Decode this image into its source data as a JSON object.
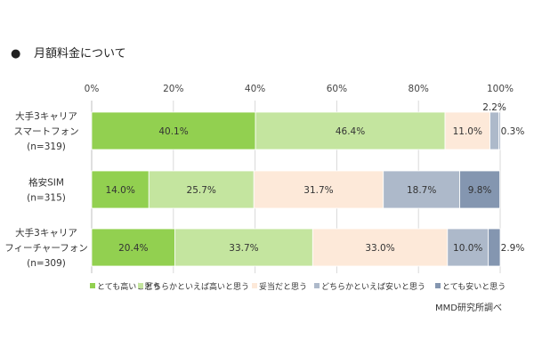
{
  "title": "月額料金について",
  "title_bullet": "●",
  "source": "MMD研究所調べ",
  "chart_data": {
    "type": "bar",
    "orientation": "horizontal",
    "stacked": true,
    "xlim": [
      0,
      100
    ],
    "x_ticks": [
      "0%",
      "20%",
      "40%",
      "60%",
      "80%",
      "100%"
    ],
    "grid": true,
    "legend_position": "bottom",
    "categories": [
      [
        "大手3キャリア",
        "スマートフォン",
        "(n=319)"
      ],
      [
        "格安SIM",
        "(n=315)"
      ],
      [
        "大手3キャリア",
        "フィーチャーフォン",
        "(n=309)"
      ]
    ],
    "series": [
      {
        "name": "とても高いと思う",
        "color": "#92d050",
        "values": [
          40.1,
          14.0,
          20.4
        ],
        "labels": [
          "40.1%",
          "14.0%",
          "20.4%"
        ]
      },
      {
        "name": "どちらかといえば高いと思う",
        "color": "#c4e59f",
        "values": [
          46.4,
          25.7,
          33.7
        ],
        "labels": [
          "46.4%",
          "25.7%",
          "33.7%"
        ]
      },
      {
        "name": "妥当だと思う",
        "color": "#fde9d9",
        "values": [
          11.0,
          31.7,
          33.0
        ],
        "labels": [
          "11.0%",
          "31.7%",
          "33.0%"
        ]
      },
      {
        "name": "どちらかといえば安いと思う",
        "color": "#adb9ca",
        "values": [
          2.2,
          18.7,
          10.0
        ],
        "labels": [
          "2.2%",
          "18.7%",
          "10.0%"
        ]
      },
      {
        "name": "とても安いと思う",
        "color": "#8496b0",
        "values": [
          0.3,
          9.8,
          2.9
        ],
        "labels": [
          "0.3%",
          "9.8%",
          "2.9%"
        ]
      }
    ]
  }
}
